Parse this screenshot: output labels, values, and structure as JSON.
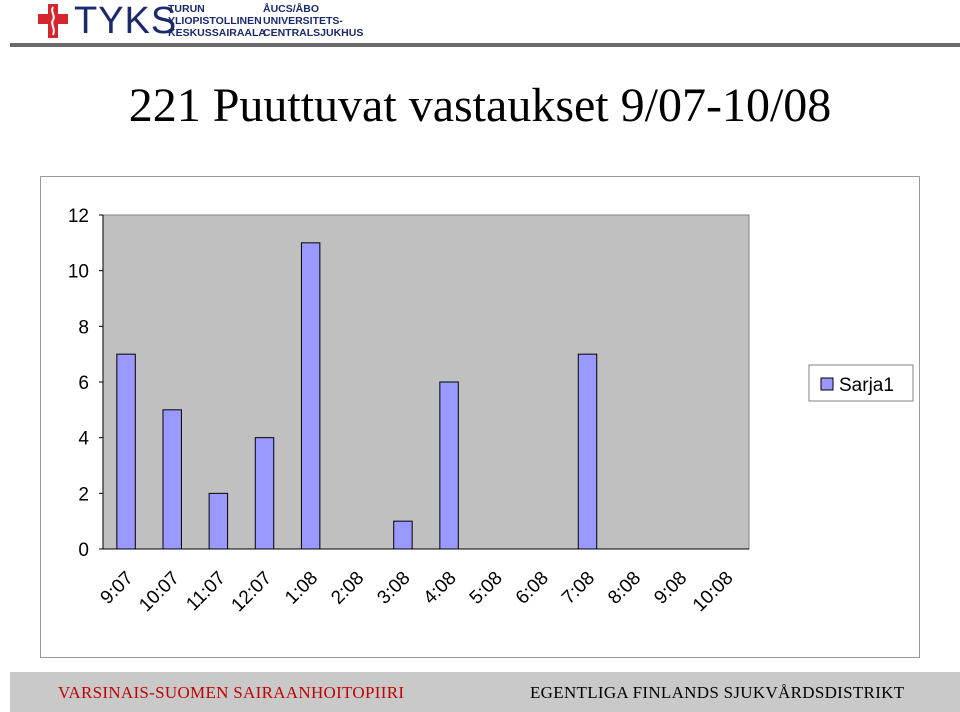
{
  "header": {
    "brand": "TYKS",
    "org_fi_line1": "TURUN",
    "org_fi_line2": "YLIOPISTOLLINEN",
    "org_fi_line3": "KESKUSSAIRAALA",
    "org_sv_line1": "ÅUCS/ÅBO",
    "org_sv_line2": "UNIVERSITETS-",
    "org_sv_line3": "CENTRALSJUKHUS",
    "cross_color": "#d4262c",
    "brand_color": "#1b2a6b"
  },
  "title": "221 Puuttuvat vastaukset 9/07-10/08",
  "chart_data": {
    "type": "bar",
    "categories": [
      "9:07",
      "10:07",
      "11:07",
      "12:07",
      "1:08",
      "2:08",
      "3:08",
      "4:08",
      "5:08",
      "6:08",
      "7:08",
      "8:08",
      "9:08",
      "10:08"
    ],
    "series": [
      {
        "name": "Sarja1",
        "values": [
          7,
          5,
          2,
          4,
          11,
          0,
          1,
          6,
          0,
          0,
          7,
          0,
          0,
          0
        ]
      }
    ],
    "ylim": [
      0,
      12
    ],
    "yticks": [
      "0",
      "2",
      "4",
      "6",
      "8",
      "10",
      "12"
    ],
    "xlabel": "",
    "ylabel": "",
    "grid": false,
    "legend": "right",
    "plot_background": "#c0c0c0",
    "bar_color": "#9999ff"
  },
  "footer": {
    "left": "VARSINAIS-SUOMEN SAIRAANHOITOPIIRI",
    "right": "EGENTLIGA FINLANDS SJUKVÅRDSDISTRIKT"
  }
}
